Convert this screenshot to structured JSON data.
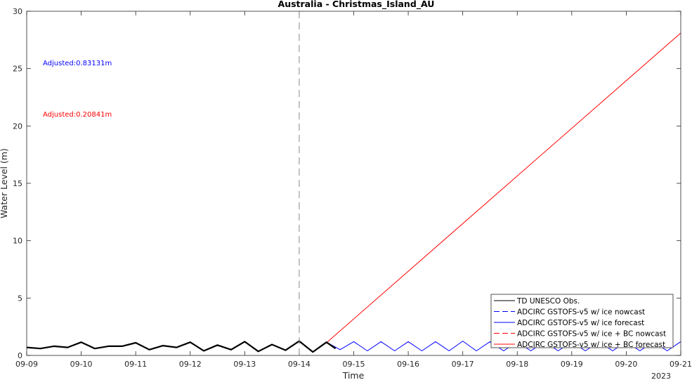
{
  "chart_data": {
    "type": "line",
    "title": "Australia - Christmas_Island_AU",
    "xlabel": "Time",
    "ylabel": "Water Level (m)",
    "year_label": "2023",
    "x_range": [
      "2023-09-09",
      "2023-09-21"
    ],
    "ylim": [
      0,
      30
    ],
    "x_ticks": [
      "09-09",
      "09-10",
      "09-11",
      "09-12",
      "09-13",
      "09-14",
      "09-15",
      "09-16",
      "09-17",
      "09-18",
      "09-19",
      "09-20",
      "09-21"
    ],
    "y_ticks": [
      0,
      5,
      10,
      15,
      20,
      25,
      30
    ],
    "nowcast_end": "2023-09-14",
    "annotations": [
      {
        "text": "Adjusted:0.83131m",
        "color": "#0000ff"
      },
      {
        "text": "Adjusted:0.20841m",
        "color": "#ff0000"
      }
    ],
    "legend_position": "bottom-right",
    "series": [
      {
        "name": "TD UNESCO Obs.",
        "color": "#000000",
        "style": "solid",
        "weight": 2.2,
        "x": [
          "2023-09-09",
          "2023-09-09 06:00",
          "2023-09-09 12:00",
          "2023-09-09 18:00",
          "2023-09-10",
          "2023-09-10 06:00",
          "2023-09-10 12:00",
          "2023-09-10 18:00",
          "2023-09-11",
          "2023-09-11 06:00",
          "2023-09-11 12:00",
          "2023-09-11 18:00",
          "2023-09-12",
          "2023-09-12 06:00",
          "2023-09-12 12:00",
          "2023-09-12 18:00",
          "2023-09-13",
          "2023-09-13 06:00",
          "2023-09-13 12:00",
          "2023-09-13 18:00",
          "2023-09-14",
          "2023-09-14 06:00",
          "2023-09-14 12:00",
          "2023-09-14 16:00"
        ],
        "y": [
          0.7,
          0.6,
          0.8,
          0.7,
          1.15,
          0.6,
          0.8,
          0.8,
          1.1,
          0.5,
          0.85,
          0.7,
          1.15,
          0.4,
          0.9,
          0.5,
          1.2,
          0.35,
          0.95,
          0.45,
          1.25,
          0.3,
          1.15,
          0.6
        ]
      },
      {
        "name": "ADCIRC GSTOFS-v5 w/ ice nowcast",
        "color": "#0000ff",
        "style": "dashed",
        "weight": 1,
        "x": [
          "2023-09-09",
          "2023-09-09 06:00",
          "2023-09-09 12:00",
          "2023-09-09 18:00",
          "2023-09-10",
          "2023-09-10 06:00",
          "2023-09-10 12:00",
          "2023-09-10 18:00",
          "2023-09-11",
          "2023-09-11 06:00",
          "2023-09-11 12:00",
          "2023-09-11 18:00",
          "2023-09-12",
          "2023-09-12 06:00",
          "2023-09-12 12:00",
          "2023-09-12 18:00",
          "2023-09-13",
          "2023-09-13 06:00",
          "2023-09-13 12:00",
          "2023-09-13 18:00",
          "2023-09-14"
        ],
        "y": [
          0.7,
          0.6,
          0.8,
          0.7,
          1.15,
          0.6,
          0.8,
          0.8,
          1.1,
          0.5,
          0.85,
          0.7,
          1.15,
          0.4,
          0.9,
          0.5,
          1.2,
          0.35,
          0.95,
          0.45,
          1.25
        ]
      },
      {
        "name": "ADCIRC GSTOFS-v5 w/ ice forecast",
        "color": "#0000ff",
        "style": "solid",
        "weight": 1,
        "x": [
          "2023-09-14",
          "2023-09-14 06:00",
          "2023-09-14 12:00",
          "2023-09-14 18:00",
          "2023-09-15",
          "2023-09-15 06:00",
          "2023-09-15 12:00",
          "2023-09-15 18:00",
          "2023-09-16",
          "2023-09-16 06:00",
          "2023-09-16 12:00",
          "2023-09-16 18:00",
          "2023-09-17",
          "2023-09-17 06:00",
          "2023-09-17 12:00",
          "2023-09-17 18:00",
          "2023-09-18",
          "2023-09-18 06:00",
          "2023-09-18 12:00",
          "2023-09-18 18:00",
          "2023-09-19",
          "2023-09-19 06:00",
          "2023-09-19 12:00",
          "2023-09-19 18:00",
          "2023-09-20",
          "2023-09-20 06:00",
          "2023-09-20 12:00",
          "2023-09-20 18:00",
          "2023-09-21"
        ],
        "y": [
          1.25,
          0.3,
          1.15,
          0.5,
          1.2,
          0.4,
          1.2,
          0.4,
          1.2,
          0.4,
          1.2,
          0.4,
          1.25,
          0.4,
          1.2,
          0.4,
          1.2,
          0.4,
          1.2,
          0.4,
          1.2,
          0.4,
          1.2,
          0.4,
          1.2,
          0.4,
          1.2,
          0.4,
          1.2
        ]
      },
      {
        "name": "ADCIRC GSTOFS-v5 w/ ice + BC nowcast",
        "color": "#ff0000",
        "style": "dashed",
        "weight": 1,
        "x": [
          "2023-09-09",
          "2023-09-09 06:00",
          "2023-09-09 12:00",
          "2023-09-09 18:00",
          "2023-09-10",
          "2023-09-10 06:00",
          "2023-09-10 12:00",
          "2023-09-10 18:00",
          "2023-09-11",
          "2023-09-11 06:00",
          "2023-09-11 12:00",
          "2023-09-11 18:00",
          "2023-09-12",
          "2023-09-12 06:00",
          "2023-09-12 12:00",
          "2023-09-12 18:00",
          "2023-09-13",
          "2023-09-13 06:00",
          "2023-09-13 12:00",
          "2023-09-13 18:00",
          "2023-09-14"
        ],
        "y": [
          0.7,
          0.6,
          0.8,
          0.7,
          1.15,
          0.6,
          0.8,
          0.8,
          1.1,
          0.5,
          0.85,
          0.7,
          1.15,
          0.4,
          0.9,
          0.5,
          1.2,
          0.35,
          0.95,
          0.45,
          1.25
        ]
      },
      {
        "name": "ADCIRC GSTOFS-v5 w/ ice + BC forecast",
        "color": "#ff0000",
        "style": "solid",
        "weight": 1,
        "x": [
          "2023-09-14",
          "2023-09-14 06:00",
          "2023-09-14 12:00",
          "2023-09-21"
        ],
        "y": [
          1.25,
          0.3,
          1.1,
          28.1
        ]
      }
    ]
  }
}
